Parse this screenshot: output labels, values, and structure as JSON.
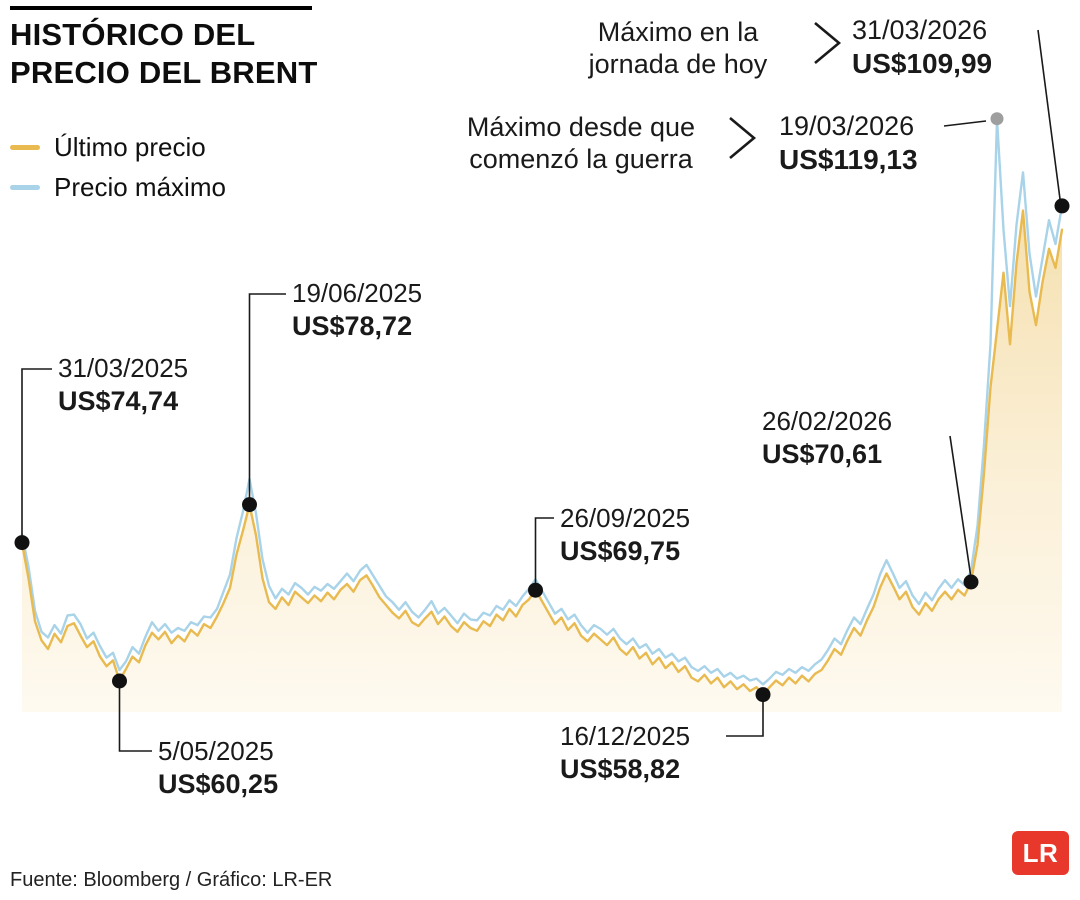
{
  "header": {
    "title_line1": "HISTÓRICO DEL",
    "title_line2": "PRECIO DEL BRENT",
    "legend": [
      {
        "label": "Último precio",
        "color": "#e8ba50"
      },
      {
        "label": "Precio máximo",
        "color": "#a8d3e8"
      }
    ]
  },
  "annotations": {
    "today_max": {
      "label_line1": "Máximo en la",
      "label_line2": "jornada de hoy",
      "date": "31/03/2026",
      "value": "US$109,99"
    },
    "war_max": {
      "label_line1": "Máximo desde que",
      "label_line2": "comenzó la guerra",
      "date": "19/03/2026",
      "value": "US$119,13"
    },
    "points": [
      {
        "date": "31/03/2025",
        "value": "US$74,74"
      },
      {
        "date": "5/05/2025",
        "value": "US$60,25"
      },
      {
        "date": "19/06/2025",
        "value": "US$78,72"
      },
      {
        "date": "26/09/2025",
        "value": "US$69,75"
      },
      {
        "date": "16/12/2025",
        "value": "US$58,82"
      },
      {
        "date": "26/02/2026",
        "value": "US$70,61"
      }
    ]
  },
  "footer": {
    "source": "Fuente: Bloomberg / Gráfico: LR-ER",
    "logo_text": "LR",
    "logo_color": "#e8382b"
  },
  "chart_data": {
    "type": "line",
    "title": "Histórico del precio del Brent",
    "x_range": [
      "31/03/2025",
      "31/03/2026"
    ],
    "ylim": [
      57,
      122
    ],
    "grid": false,
    "legend_position": "top-left",
    "area_gradient": [
      "#f5e0b0",
      "#fbf0d8",
      "#fefaf0"
    ],
    "marker_colors": {
      "black": "#111111",
      "gray": "#9e9e9e"
    },
    "series": [
      {
        "name": "Último precio",
        "color": "#e8ba50",
        "values": [
          74.7,
          71.0,
          66.5,
          64.5,
          63.6,
          65.2,
          64.3,
          66.0,
          66.3,
          65.0,
          63.8,
          64.4,
          62.8,
          61.8,
          62.4,
          60.3,
          61.5,
          62.8,
          62.2,
          64.0,
          65.3,
          64.6,
          65.4,
          64.2,
          65.0,
          64.4,
          65.6,
          65.0,
          66.2,
          65.8,
          67.0,
          68.4,
          70.0,
          73.5,
          76.0,
          78.7,
          75.5,
          71.0,
          68.5,
          67.8,
          69.0,
          68.2,
          69.6,
          69.0,
          68.4,
          69.2,
          68.6,
          69.5,
          68.8,
          69.8,
          70.4,
          69.6,
          70.8,
          71.3,
          70.2,
          69.0,
          68.2,
          67.4,
          66.8,
          67.6,
          66.4,
          66.0,
          66.8,
          67.5,
          66.2,
          67.0,
          66.0,
          65.4,
          66.4,
          65.8,
          65.5,
          66.5,
          66.0,
          67.2,
          66.6,
          67.8,
          67.0,
          68.2,
          68.8,
          69.8,
          68.6,
          67.4,
          66.2,
          66.9,
          65.6,
          66.3,
          65.0,
          64.4,
          65.2,
          64.6,
          64.0,
          64.8,
          63.6,
          63.0,
          63.8,
          62.6,
          63.2,
          62.0,
          62.7,
          61.6,
          62.2,
          61.2,
          61.8,
          60.6,
          60.2,
          60.9,
          60.0,
          60.6,
          59.6,
          60.2,
          59.4,
          59.9,
          59.2,
          59.6,
          58.8,
          59.6,
          60.3,
          59.8,
          60.6,
          60.0,
          60.8,
          60.2,
          61.0,
          61.4,
          62.4,
          63.6,
          63.0,
          64.5,
          65.8,
          65.0,
          66.6,
          68.0,
          70.0,
          71.5,
          70.2,
          68.8,
          69.6,
          68.0,
          67.2,
          68.4,
          67.6,
          68.8,
          69.6,
          68.8,
          69.8,
          69.2,
          70.6,
          74.5,
          82.0,
          91.0,
          97.0,
          103.0,
          95.5,
          104.0,
          109.5,
          101.0,
          97.5,
          102.0,
          105.5,
          103.5,
          107.5
        ]
      },
      {
        "name": "Precio máximo",
        "color": "#a8d3e8",
        "values": [
          75.6,
          72.2,
          67.6,
          65.4,
          64.8,
          66.1,
          65.2,
          67.1,
          67.2,
          66.2,
          64.7,
          65.3,
          63.9,
          62.7,
          63.2,
          61.4,
          62.3,
          63.8,
          63.1,
          64.9,
          66.4,
          65.5,
          66.2,
          65.3,
          65.8,
          65.5,
          66.4,
          66.1,
          67.0,
          66.9,
          67.8,
          69.6,
          71.4,
          75.2,
          78.0,
          81.4,
          77.8,
          73.0,
          70.2,
          68.9,
          69.9,
          69.3,
          70.5,
          70.0,
          69.3,
          70.1,
          69.7,
          70.4,
          69.9,
          70.7,
          71.5,
          70.7,
          71.8,
          72.4,
          71.3,
          70.2,
          69.1,
          68.5,
          67.7,
          68.5,
          67.5,
          66.9,
          67.7,
          68.6,
          67.3,
          67.9,
          67.1,
          66.3,
          67.3,
          66.7,
          66.6,
          67.4,
          67.1,
          68.1,
          67.7,
          68.7,
          68.1,
          69.1,
          69.9,
          70.9,
          69.7,
          68.5,
          67.3,
          67.8,
          66.7,
          67.2,
          66.1,
          65.3,
          66.1,
          65.7,
          65.1,
          65.7,
          64.7,
          64.1,
          64.7,
          63.7,
          64.1,
          63.1,
          63.6,
          62.7,
          63.1,
          62.3,
          62.7,
          61.7,
          61.3,
          61.8,
          61.1,
          61.5,
          60.7,
          61.1,
          60.5,
          60.8,
          60.3,
          60.5,
          59.9,
          60.5,
          61.2,
          60.9,
          61.5,
          61.1,
          61.7,
          61.3,
          62.0,
          62.5,
          63.5,
          64.7,
          64.1,
          65.6,
          66.9,
          66.2,
          67.8,
          69.3,
          71.4,
          72.9,
          71.5,
          70.0,
          70.7,
          69.2,
          68.3,
          69.5,
          68.7,
          69.9,
          70.8,
          70.0,
          70.9,
          70.3,
          71.8,
          76.5,
          85.0,
          95.5,
          119.1,
          107.5,
          99.5,
          108.0,
          113.5,
          105.0,
          100.5,
          104.5,
          108.5,
          106.0,
          110.0
        ]
      }
    ],
    "markers": [
      {
        "series": "ultimo",
        "index": 0,
        "price": 74.74,
        "date": "31/03/2025",
        "style": "black"
      },
      {
        "series": "ultimo",
        "index": 15,
        "price": 60.25,
        "date": "5/05/2025",
        "style": "black"
      },
      {
        "series": "ultimo",
        "index": 35,
        "price": 78.72,
        "date": "19/06/2025",
        "style": "black"
      },
      {
        "series": "ultimo",
        "index": 79,
        "price": 69.75,
        "date": "26/09/2025",
        "style": "black"
      },
      {
        "series": "ultimo",
        "index": 114,
        "price": 58.82,
        "date": "16/12/2025",
        "style": "black"
      },
      {
        "series": "ultimo",
        "index": 146,
        "price": 70.61,
        "date": "26/02/2026",
        "style": "black"
      },
      {
        "series": "maximo",
        "index": 150,
        "price": 119.13,
        "date": "19/03/2026",
        "style": "gray"
      },
      {
        "series": "maximo",
        "index": 160,
        "price": 109.99,
        "date": "31/03/2026",
        "style": "black"
      }
    ]
  }
}
